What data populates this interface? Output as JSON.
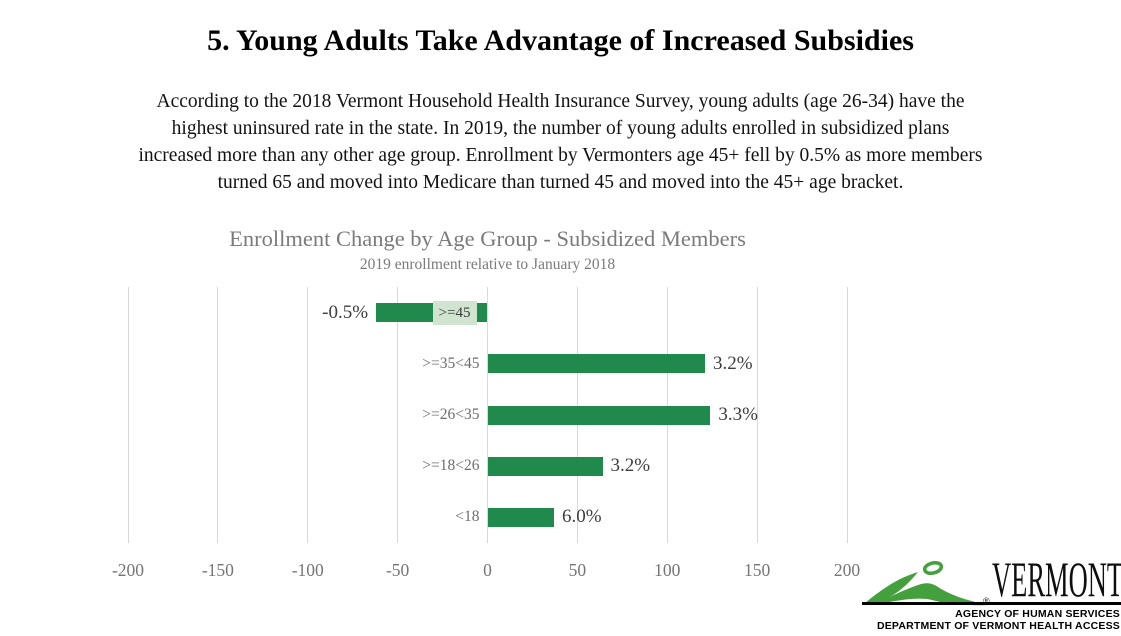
{
  "title": "5. Young Adults Take Advantage of Increased Subsidies",
  "paragraph_lines": [
    "According to the 2018 Vermont Household Health Insurance Survey, young adults (age 26-34) have the",
    "highest uninsured rate in the state. In 2019, the number of young adults enrolled in subsidized plans",
    "increased more than any other age group. Enrollment by Vermonters age 45+ fell by 0.5% as more members",
    "turned 65 and moved into Medicare than turned 45 and moved into the 45+ age bracket."
  ],
  "chart_data": {
    "type": "bar",
    "orientation": "horizontal",
    "title": "Enrollment Change by Age Group - Subsidized Members",
    "subtitle": "2019 enrollment relative to January 2018",
    "rows": [
      {
        "category": ">=45",
        "value": -62,
        "label": "-0.5%",
        "category_label_boxed": true
      },
      {
        "category": ">=35<45",
        "value": 121,
        "label": "3.2%"
      },
      {
        "category": ">=26<35",
        "value": 124,
        "label": "3.3%"
      },
      {
        "category": ">=18<26",
        "value": 64,
        "label": "3.2%"
      },
      {
        "category": "<18",
        "value": 37,
        "label": "6.0%"
      }
    ],
    "xlim": [
      -200,
      200
    ],
    "xticks": [
      -200,
      -150,
      -100,
      -50,
      0,
      50,
      100,
      150,
      200
    ],
    "grid": true,
    "legend": "none",
    "bar_color": "#1f8a4b",
    "category_label_box_bg": "#d0e4d0",
    "gridline_color": "#d9d9d9"
  },
  "logo": {
    "brand": "VERMONT",
    "registered": "®",
    "line1": "AGENCY OF HUMAN SERVICES",
    "line2": "DEPARTMENT OF VERMONT HEALTH ACCESS",
    "green": "#44a03c"
  }
}
